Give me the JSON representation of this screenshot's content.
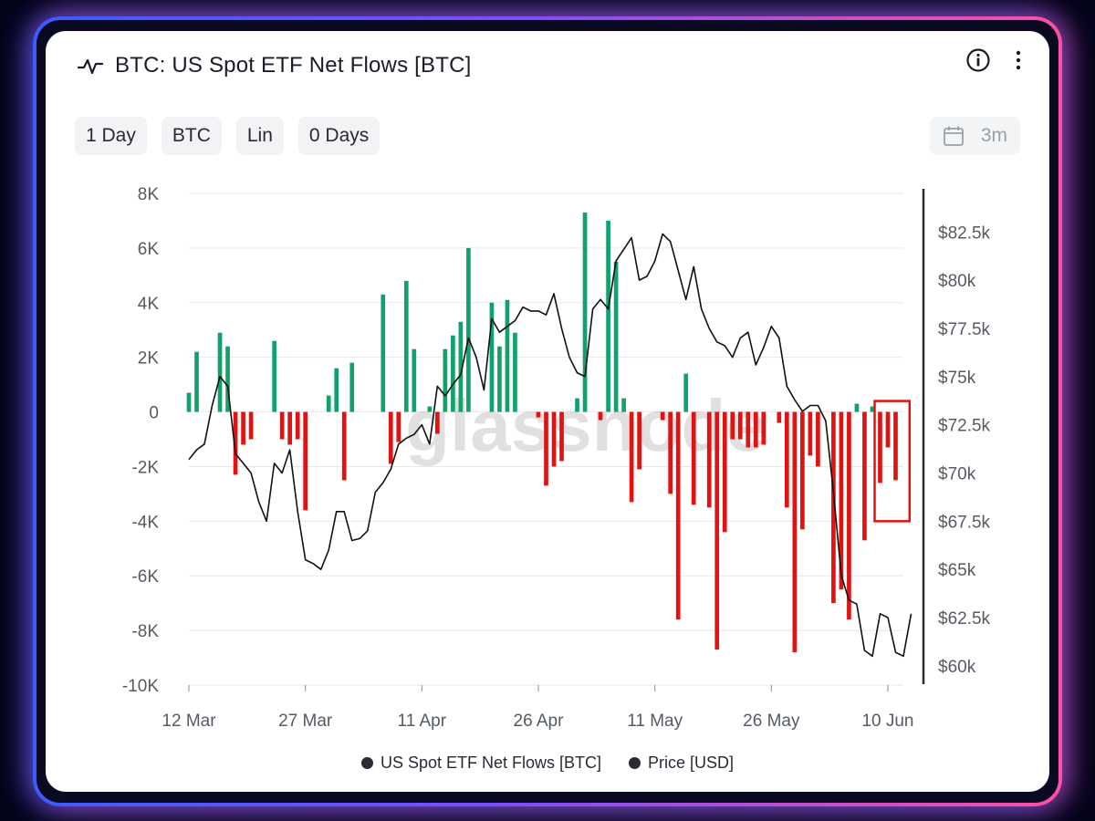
{
  "header": {
    "title": "BTC: US Spot ETF Net Flows [BTC]",
    "title_icon": "pulse-line-icon",
    "info_icon": "info-circle-icon",
    "more_icon": "more-vertical-icon"
  },
  "controls": [
    {
      "label": "1 Day"
    },
    {
      "label": "BTC"
    },
    {
      "label": "Lin"
    },
    {
      "label": "0 Days"
    }
  ],
  "date_range": {
    "icon": "calendar-icon",
    "label": "3m"
  },
  "watermark": "glassnode",
  "colors": {
    "positive": "#12a16a",
    "negative": "#e01212",
    "price_line": "#111111",
    "highlight_box": "#e01212"
  },
  "chart_data": {
    "type": "bar",
    "title": "BTC: US Spot ETF Net Flows [BTC]",
    "x_tick_labels": [
      "12 Mar",
      "27 Mar",
      "11 Apr",
      "26 Apr",
      "11 May",
      "26 May",
      "10 Jun"
    ],
    "y_left": {
      "ticks": [
        8000,
        6000,
        4000,
        2000,
        0,
        -2000,
        -4000,
        -6000,
        -8000,
        -10000
      ],
      "tick_labels": [
        "8K",
        "6K",
        "4K",
        "2K",
        "0",
        "-2K",
        "-4K",
        "-6K",
        "-8K",
        "-10K"
      ],
      "range": [
        -10000,
        8000
      ]
    },
    "y_right": {
      "ticks": [
        82500,
        80000,
        77500,
        75000,
        72500,
        70000,
        67500,
        65000,
        62500,
        60000
      ],
      "tick_labels": [
        "$82.5k",
        "$80k",
        "$77.5k",
        "$75k",
        "$72.5k",
        "$70k",
        "$67.5k",
        "$65k",
        "$62.5k",
        "$60k"
      ],
      "range": [
        59000,
        84500
      ]
    },
    "x_range": [
      0,
      90
    ],
    "series": [
      {
        "name": "US Spot ETF Net Flows [BTC]",
        "type": "bar",
        "points": [
          [
            0,
            700
          ],
          [
            1,
            2200
          ],
          [
            4,
            2900
          ],
          [
            5,
            2400
          ],
          [
            6,
            -2300
          ],
          [
            7,
            -1200
          ],
          [
            8,
            -1000
          ],
          [
            11,
            2600
          ],
          [
            12,
            -1000
          ],
          [
            13,
            -1200
          ],
          [
            14,
            -1000
          ],
          [
            15,
            -3600
          ],
          [
            18,
            600
          ],
          [
            19,
            1600
          ],
          [
            20,
            -2500
          ],
          [
            21,
            1800
          ],
          [
            25,
            4300
          ],
          [
            26,
            -1900
          ],
          [
            27,
            -1100
          ],
          [
            28,
            4800
          ],
          [
            29,
            2300
          ],
          [
            31,
            200
          ],
          [
            32,
            -800
          ],
          [
            33,
            2300
          ],
          [
            34,
            2800
          ],
          [
            35,
            3300
          ],
          [
            36,
            6000
          ],
          [
            39,
            4000
          ],
          [
            40,
            2400
          ],
          [
            41,
            4100
          ],
          [
            42,
            2900
          ],
          [
            45,
            -200
          ],
          [
            46,
            -2700
          ],
          [
            47,
            -2000
          ],
          [
            48,
            -1800
          ],
          [
            50,
            500
          ],
          [
            51,
            7300
          ],
          [
            53,
            -300
          ],
          [
            54,
            7000
          ],
          [
            55,
            5500
          ],
          [
            56,
            500
          ],
          [
            57,
            -3300
          ],
          [
            58,
            -2100
          ],
          [
            61,
            -300
          ],
          [
            62,
            -3000
          ],
          [
            63,
            -7600
          ],
          [
            64,
            1400
          ],
          [
            65,
            -3400
          ],
          [
            67,
            -3500
          ],
          [
            68,
            -8700
          ],
          [
            69,
            -4400
          ],
          [
            70,
            -1000
          ],
          [
            71,
            -1000
          ],
          [
            72,
            -1300
          ],
          [
            73,
            -1300
          ],
          [
            74,
            -1200
          ],
          [
            76,
            -400
          ],
          [
            77,
            -3500
          ],
          [
            78,
            -8800
          ],
          [
            79,
            -4300
          ],
          [
            80,
            -1600
          ],
          [
            81,
            -2000
          ],
          [
            83,
            -7000
          ],
          [
            84,
            -6500
          ],
          [
            85,
            -7600
          ],
          [
            86,
            300
          ],
          [
            87,
            -4700
          ],
          [
            88,
            200
          ],
          [
            89,
            -2600
          ],
          [
            90,
            -1300
          ],
          [
            91,
            -2500
          ]
        ]
      },
      {
        "name": "Price [USD]",
        "type": "line",
        "points": [
          [
            0,
            70700
          ],
          [
            1,
            71200
          ],
          [
            2,
            71500
          ],
          [
            3,
            73500
          ],
          [
            4,
            75000
          ],
          [
            5,
            74500
          ],
          [
            6,
            71000
          ],
          [
            7,
            70500
          ],
          [
            8,
            70000
          ],
          [
            9,
            68500
          ],
          [
            10,
            67500
          ],
          [
            11,
            70500
          ],
          [
            12,
            70000
          ],
          [
            13,
            71200
          ],
          [
            14,
            68000
          ],
          [
            15,
            65500
          ],
          [
            16,
            65300
          ],
          [
            17,
            65000
          ],
          [
            18,
            66000
          ],
          [
            19,
            68000
          ],
          [
            20,
            68000
          ],
          [
            21,
            66500
          ],
          [
            22,
            66600
          ],
          [
            23,
            67000
          ],
          [
            24,
            69000
          ],
          [
            25,
            69500
          ],
          [
            26,
            70200
          ],
          [
            27,
            71500
          ],
          [
            28,
            71800
          ],
          [
            29,
            72000
          ],
          [
            30,
            72500
          ],
          [
            31,
            71500
          ],
          [
            32,
            74500
          ],
          [
            33,
            74000
          ],
          [
            34,
            74600
          ],
          [
            35,
            75100
          ],
          [
            36,
            77000
          ],
          [
            37,
            76000
          ],
          [
            38,
            74300
          ],
          [
            39,
            78000
          ],
          [
            40,
            77300
          ],
          [
            41,
            77600
          ],
          [
            42,
            77900
          ],
          [
            43,
            78600
          ],
          [
            44,
            78400
          ],
          [
            45,
            78400
          ],
          [
            46,
            78200
          ],
          [
            47,
            79300
          ],
          [
            48,
            77500
          ],
          [
            49,
            76000
          ],
          [
            50,
            75200
          ],
          [
            51,
            75000
          ],
          [
            52,
            78500
          ],
          [
            53,
            79000
          ],
          [
            54,
            78500
          ],
          [
            55,
            81000
          ],
          [
            56,
            81600
          ],
          [
            57,
            82200
          ],
          [
            58,
            80000
          ],
          [
            59,
            80200
          ],
          [
            60,
            81000
          ],
          [
            61,
            82400
          ],
          [
            62,
            82000
          ],
          [
            63,
            80500
          ],
          [
            64,
            79000
          ],
          [
            65,
            80700
          ],
          [
            66,
            78500
          ],
          [
            67,
            77500
          ],
          [
            68,
            76800
          ],
          [
            69,
            76600
          ],
          [
            70,
            76000
          ],
          [
            71,
            77000
          ],
          [
            72,
            77300
          ],
          [
            73,
            75600
          ],
          [
            74,
            76500
          ],
          [
            75,
            77600
          ],
          [
            76,
            77000
          ],
          [
            77,
            74500
          ],
          [
            78,
            73800
          ],
          [
            79,
            73200
          ],
          [
            80,
            73500
          ],
          [
            81,
            73500
          ],
          [
            82,
            72700
          ],
          [
            83,
            69000
          ],
          [
            84,
            64700
          ],
          [
            85,
            63400
          ],
          [
            86,
            63200
          ],
          [
            87,
            60800
          ],
          [
            88,
            60500
          ],
          [
            89,
            62700
          ],
          [
            90,
            62500
          ],
          [
            91,
            60700
          ],
          [
            92,
            60500
          ],
          [
            93,
            62700
          ]
        ]
      }
    ],
    "legend": {
      "placement": "bottom-center",
      "entries": [
        "US Spot ETF Net Flows [BTC]",
        "Price [USD]"
      ]
    },
    "grid": true,
    "highlight_box": {
      "x_range": [
        88.3,
        92.8
      ],
      "y_range": [
        -4000,
        400
      ]
    }
  }
}
